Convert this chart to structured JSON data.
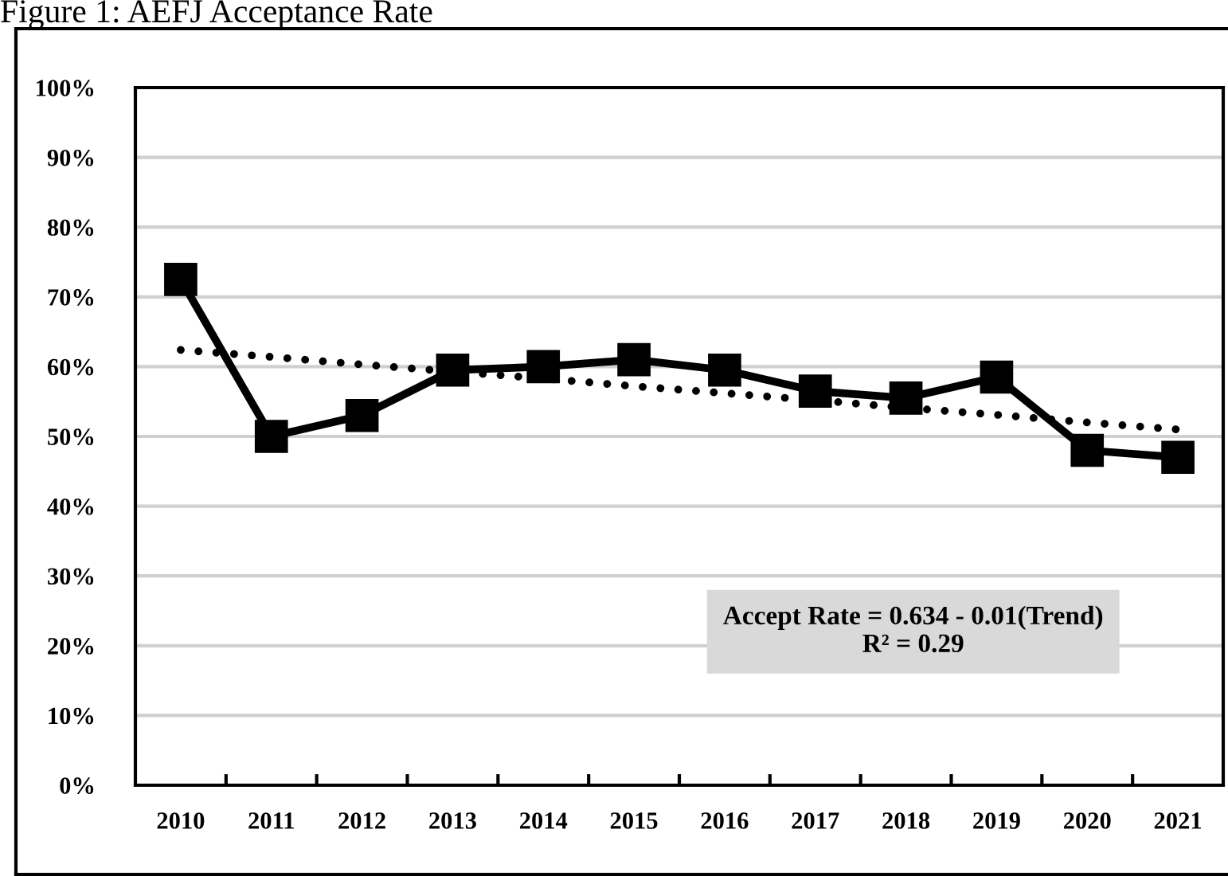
{
  "chart_data": {
    "type": "line",
    "title": "Figure 1: AEFJ Acceptance Rate",
    "categories": [
      "2010",
      "2011",
      "2012",
      "2013",
      "2014",
      "2015",
      "2016",
      "2017",
      "2018",
      "2019",
      "2020",
      "2021"
    ],
    "series": [
      {
        "color": "#000000",
        "marker": "square",
        "line_style": "solid",
        "values": [
          72.5,
          50,
          53,
          59.5,
          60,
          61,
          59.5,
          56.5,
          55.5,
          58.5,
          48,
          47
        ]
      },
      {
        "color": "#000000",
        "marker": "none",
        "line_style": "dotted",
        "values": [
          62.4,
          61.4,
          60.3,
          59.3,
          58.3,
          57.2,
          56.2,
          55.2,
          54.1,
          53.1,
          52.0,
          51.0
        ]
      }
    ],
    "ylim": [
      0,
      100
    ],
    "yticks": [
      {
        "value": 0,
        "label": "0%"
      },
      {
        "value": 10,
        "label": "10%"
      },
      {
        "value": 20,
        "label": "20%"
      },
      {
        "value": 30,
        "label": "30%"
      },
      {
        "value": 40,
        "label": "40%"
      },
      {
        "value": 50,
        "label": "50%"
      },
      {
        "value": 60,
        "label": "60%"
      },
      {
        "value": 70,
        "label": "70%"
      },
      {
        "value": 80,
        "label": "80%"
      },
      {
        "value": 90,
        "label": "90%"
      },
      {
        "value": 100,
        "label": "100%"
      }
    ],
    "grid": "y",
    "legend": false,
    "annotations": [
      "Accept Rate = 0.634 - 0.01(Trend)\nR² = 0.29"
    ]
  }
}
